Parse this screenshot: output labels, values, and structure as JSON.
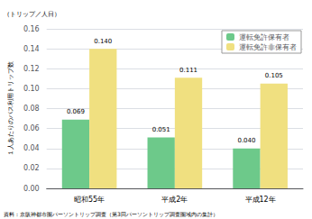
{
  "chart_data": {
    "type": "bar",
    "ylabel": "１人あたりのバス利用トリップ数",
    "annotations": [
      "（トリップ／人日）",
      "資料：京阪神都市圏パーソントリップ調査（第3回パーソントリップ調査圏域内の集計）"
    ],
    "categories": [
      "昭和55年",
      "平成2年",
      "平成12年"
    ],
    "series": [
      {
        "name": "運転免許保有者",
        "color": "#6dc98a",
        "values": [
          0.069,
          0.051,
          0.04
        ],
        "value_labels": [
          "0.069",
          "0.051",
          "0.040"
        ]
      },
      {
        "name": "運転免許非保有者",
        "color": "#f0e080",
        "values": [
          0.14,
          0.111,
          0.105
        ],
        "value_labels": [
          "0.140",
          "0.111",
          "0.105"
        ]
      }
    ],
    "ylim": [
      0,
      0.16
    ],
    "yticks": [
      {
        "value": 0,
        "label": "0.00"
      },
      {
        "value": 0.02,
        "label": "0.02"
      },
      {
        "value": 0.04,
        "label": "0.04"
      },
      {
        "value": 0.06,
        "label": "0.06"
      },
      {
        "value": 0.08,
        "label": "0.08"
      },
      {
        "value": 0.1,
        "label": "0.10"
      },
      {
        "value": 0.12,
        "label": "0.12"
      },
      {
        "value": 0.14,
        "label": "0.14"
      },
      {
        "value": 0.16,
        "label": "0.16"
      }
    ],
    "grid": true,
    "legend": "upper right",
    "data_labels": true
  }
}
